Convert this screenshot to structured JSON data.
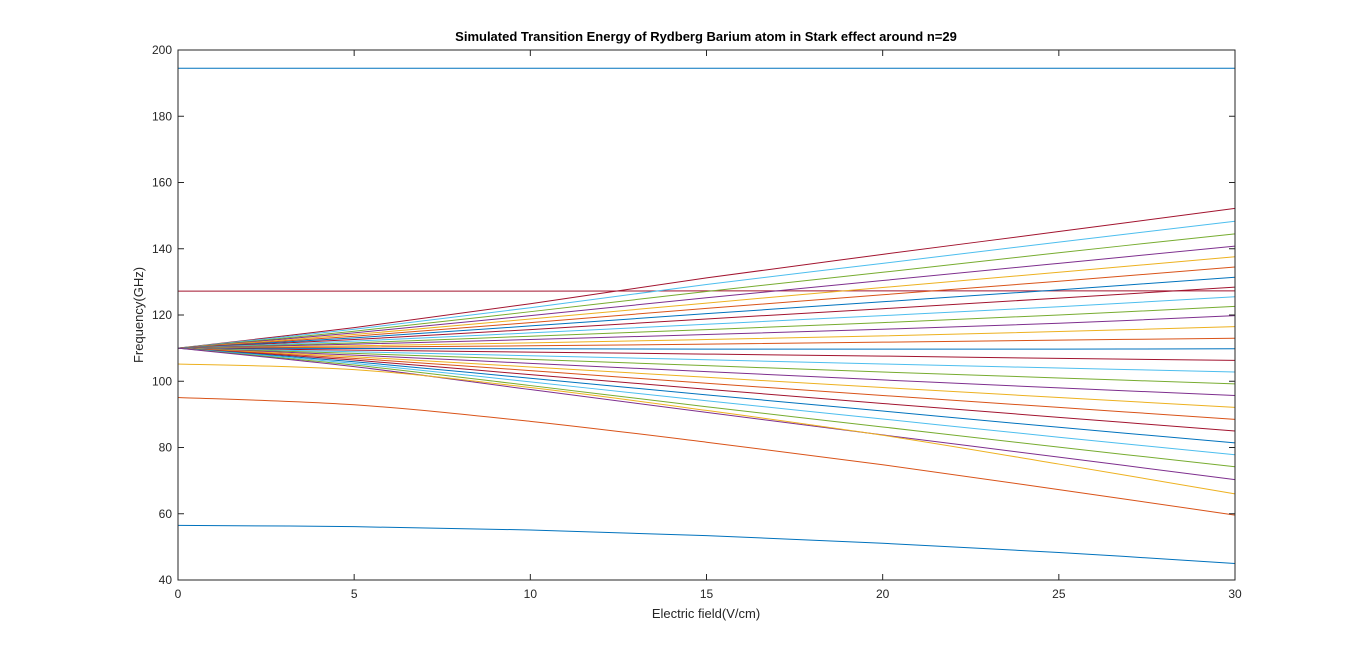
{
  "chart_data": {
    "type": "line",
    "title": "Simulated Transition Energy of Rydberg Barium atom in Stark effect around n=29",
    "xlabel": "Electric field(V/cm)",
    "ylabel": "Frequency(GHz)",
    "xlim": [
      0,
      30
    ],
    "ylim": [
      40,
      200
    ],
    "xticks": [
      0,
      5,
      10,
      15,
      20,
      25,
      30
    ],
    "yticks": [
      40,
      60,
      80,
      100,
      120,
      140,
      160,
      180,
      200
    ],
    "xtick_labels": [
      "0",
      "5",
      "10",
      "15",
      "20",
      "25",
      "30"
    ],
    "ytick_labels": [
      "40",
      "60",
      "80",
      "100",
      "120",
      "140",
      "160",
      "180",
      "200"
    ],
    "grid": false,
    "legend": "none",
    "x": [
      0,
      5,
      10,
      15,
      20,
      25,
      30
    ],
    "series": [
      {
        "color": "#0072BD",
        "values": [
          194.5,
          194.5,
          194.5,
          194.5,
          194.5,
          194.5,
          194.5
        ]
      },
      {
        "color": "#A2142F",
        "values": [
          127.2,
          127.2,
          127.2,
          127.3,
          127.3,
          127.3,
          127.3
        ]
      },
      {
        "color": "#A2142F",
        "values": [
          110,
          116.2,
          123.4,
          131.2,
          138.3,
          145.2,
          152.2
        ]
      },
      {
        "color": "#4DBEEE",
        "values": [
          110,
          115.7,
          122.2,
          129.2,
          135.6,
          142,
          148.3
        ]
      },
      {
        "color": "#77AC30",
        "values": [
          110,
          115.1,
          121,
          127.1,
          132.9,
          138.8,
          144.5
        ]
      },
      {
        "color": "#7E2F8E",
        "values": [
          110,
          114.6,
          119.8,
          125.2,
          130.4,
          135.6,
          140.8
        ]
      },
      {
        "color": "#EDB120",
        "values": [
          110,
          114.1,
          118.8,
          123.6,
          128.3,
          132.9,
          137.6
        ]
      },
      {
        "color": "#D95319",
        "values": [
          110,
          113.6,
          117.7,
          122,
          126.1,
          130.2,
          134.5
        ]
      },
      {
        "color": "#0072BD",
        "values": [
          110,
          113.1,
          116.7,
          120.4,
          124,
          127.6,
          131.4
        ]
      },
      {
        "color": "#A2142F",
        "values": [
          110,
          112.6,
          115.6,
          118.8,
          121.9,
          125.1,
          128.4
        ]
      },
      {
        "color": "#4DBEEE",
        "values": [
          110,
          112.1,
          114.6,
          117.2,
          119.8,
          122.5,
          125.5
        ]
      },
      {
        "color": "#77AC30",
        "values": [
          110,
          111.6,
          113.6,
          115.6,
          117.7,
          120,
          122.6
        ]
      },
      {
        "color": "#7E2F8E",
        "values": [
          110,
          111.2,
          112.6,
          114.1,
          115.7,
          117.5,
          119.8
        ]
      },
      {
        "color": "#EDB120",
        "values": [
          110,
          110.7,
          111.6,
          112.6,
          113.7,
          115,
          116.5
        ]
      },
      {
        "color": "#D95319",
        "values": [
          110,
          110.3,
          110.7,
          111.2,
          111.8,
          112.4,
          113
        ]
      },
      {
        "color": "#0072BD",
        "values": [
          110,
          109.9,
          109.8,
          109.7,
          109.7,
          109.7,
          109.8
        ]
      },
      {
        "color": "#A2142F",
        "values": [
          110,
          109.4,
          108.8,
          108.2,
          107.6,
          106.9,
          106.3
        ]
      },
      {
        "color": "#4DBEEE",
        "values": [
          110,
          108.9,
          107.7,
          106.5,
          105.2,
          104,
          102.8
        ]
      },
      {
        "color": "#77AC30",
        "values": [
          110,
          108.4,
          106.6,
          104.7,
          102.8,
          101,
          99.2
        ]
      },
      {
        "color": "#7E2F8E",
        "values": [
          110,
          107.9,
          105.4,
          102.9,
          100.4,
          98,
          95.7
        ]
      },
      {
        "color": "#EDB120",
        "values": [
          110,
          107.4,
          104.3,
          101.2,
          98.1,
          95.1,
          92.1
        ]
      },
      {
        "color": "#D95319",
        "values": [
          110,
          106.9,
          103.2,
          99.4,
          95.7,
          92.1,
          88.5
        ]
      },
      {
        "color": "#A2142F",
        "values": [
          110,
          106.4,
          102,
          97.6,
          93.3,
          89.1,
          85
        ]
      },
      {
        "color": "#0072BD",
        "values": [
          110,
          105.9,
          100.9,
          95.9,
          91,
          86.1,
          81.4
        ]
      },
      {
        "color": "#4DBEEE",
        "values": [
          110,
          105.4,
          99.8,
          94.1,
          88.6,
          83.1,
          77.8
        ]
      },
      {
        "color": "#77AC30",
        "values": [
          110,
          104.9,
          98.7,
          92.3,
          86.2,
          80.1,
          74.2
        ]
      },
      {
        "color": "#7E2F8E",
        "values": [
          110,
          104.4,
          97.5,
          90.6,
          83.8,
          77.1,
          70.3
        ]
      },
      {
        "color": "#EDB120",
        "values": [
          105.2,
          103.5,
          98.1,
          91.2,
          83.7,
          75,
          66
        ]
      },
      {
        "color": "#D95319",
        "values": [
          95.1,
          92.9,
          87.9,
          81.6,
          74.8,
          67.3,
          59.6
        ]
      },
      {
        "color": "#0072BD",
        "values": [
          56.5,
          56.1,
          55.1,
          53.4,
          51.1,
          48.3,
          45
        ]
      }
    ]
  }
}
